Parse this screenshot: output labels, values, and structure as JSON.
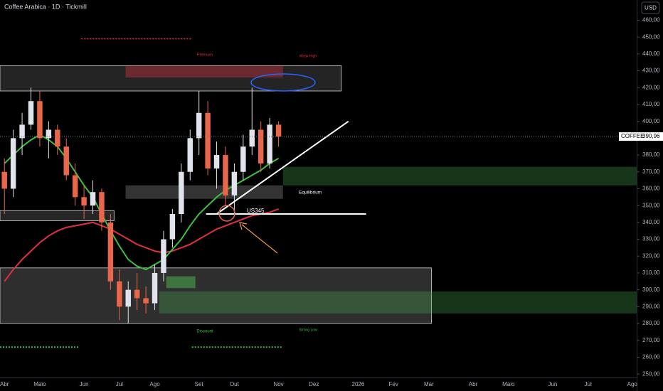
{
  "header": {
    "title": "Coffee Arabica · 1D · Tickmill",
    "currency": "USD"
  },
  "chart_data": {
    "type": "candlestick",
    "categories": [
      "Abr",
      null,
      null,
      null,
      "Maio",
      null,
      null,
      null,
      null,
      "Jun",
      null,
      null,
      null,
      "Jul",
      null,
      null,
      null,
      "Ago",
      null,
      null,
      null,
      null,
      "Set",
      null,
      null,
      null,
      "Out",
      null,
      null,
      null,
      null,
      "Nov",
      null,
      null,
      null,
      "Dez",
      null,
      null,
      null,
      null,
      "2026",
      null,
      null,
      null,
      "Fev",
      null,
      null,
      null,
      "Mar",
      null,
      null,
      null,
      null,
      "Abr",
      null,
      null,
      null,
      "Maio",
      null,
      null,
      null,
      null,
      "Jun",
      null,
      null,
      null,
      "Jul",
      null,
      null,
      null,
      null,
      "Ago"
    ],
    "open": [
      370,
      360,
      390,
      398,
      412,
      390,
      395,
      385,
      368,
      355,
      350,
      358,
      340,
      305,
      290,
      300,
      295,
      292,
      310,
      330,
      345,
      370,
      390,
      405,
      372,
      380,
      356,
      370,
      385,
      395,
      375,
      398,
      null,
      null,
      null,
      null,
      null,
      null,
      null,
      null,
      null,
      null,
      null,
      null,
      null,
      null,
      null,
      null,
      null,
      null,
      null,
      null,
      null,
      null,
      null,
      null,
      null,
      null,
      null,
      null,
      null,
      null,
      null,
      null,
      null,
      null,
      null,
      null,
      null,
      null,
      null,
      null
    ],
    "high": [
      378,
      395,
      405,
      420,
      418,
      400,
      398,
      390,
      375,
      362,
      365,
      360,
      345,
      312,
      305,
      310,
      302,
      315,
      335,
      348,
      375,
      395,
      418,
      412,
      388,
      385,
      375,
      392,
      420,
      400,
      402,
      400,
      null,
      null,
      null,
      null,
      null,
      null,
      null,
      null,
      null,
      null,
      null,
      null,
      null,
      null,
      null,
      null,
      null,
      null,
      null,
      null,
      null,
      null,
      null,
      null,
      null,
      null,
      null,
      null,
      null,
      null,
      null,
      null,
      null,
      null,
      null,
      null,
      null,
      null,
      null,
      null
    ],
    "low": [
      345,
      355,
      380,
      395,
      385,
      378,
      380,
      365,
      350,
      342,
      345,
      335,
      300,
      282,
      280,
      288,
      286,
      288,
      305,
      325,
      340,
      365,
      380,
      368,
      360,
      350,
      345,
      365,
      380,
      370,
      372,
      385,
      null,
      null,
      null,
      null,
      null,
      null,
      null,
      null,
      null,
      null,
      null,
      null,
      null,
      null,
      null,
      null,
      null,
      null,
      null,
      null,
      null,
      null,
      null,
      null,
      null,
      null,
      null,
      null,
      null,
      null,
      null,
      null,
      null,
      null,
      null,
      null,
      null,
      null,
      null,
      null
    ],
    "close": [
      360,
      390,
      398,
      412,
      390,
      395,
      385,
      368,
      355,
      350,
      358,
      340,
      305,
      290,
      300,
      295,
      292,
      310,
      330,
      345,
      370,
      390,
      405,
      372,
      380,
      356,
      370,
      385,
      395,
      375,
      398,
      390.96,
      null,
      null,
      null,
      null,
      null,
      null,
      null,
      null,
      null,
      null,
      null,
      null,
      null,
      null,
      null,
      null,
      null,
      null,
      null,
      null,
      null,
      null,
      null,
      null,
      null,
      null,
      null,
      null,
      null,
      null,
      null,
      null,
      null,
      null,
      null,
      null,
      null,
      null,
      null,
      null
    ],
    "up_color": "#e0e3eb",
    "down_color": "#e8664a",
    "ma": [
      {
        "color": "#e0303e",
        "values": [
          305,
          312,
          318,
          323,
          328,
          332,
          335,
          337,
          338,
          339,
          340,
          338,
          336,
          333,
          330,
          327,
          325,
          323,
          322,
          323,
          325,
          327,
          330,
          333,
          336,
          338,
          340,
          342,
          344,
          345,
          346,
          348,
          null,
          null,
          null,
          null,
          null,
          null,
          null,
          null,
          null,
          null,
          null,
          null,
          null,
          null,
          null,
          null,
          null,
          null,
          null,
          null,
          null,
          null,
          null,
          null,
          null,
          null,
          null,
          null,
          null,
          null,
          null,
          null,
          null,
          null,
          null,
          null,
          null,
          null,
          null,
          null
        ]
      },
      {
        "color": "#3fbf3f",
        "values": [
          375,
          380,
          385,
          389,
          392,
          389,
          385,
          378,
          370,
          362,
          355,
          345,
          335,
          326,
          318,
          314,
          312,
          315,
          318,
          324,
          330,
          338,
          345,
          350,
          355,
          359,
          362,
          365,
          368,
          371,
          375,
          378,
          null,
          null,
          null,
          null,
          null,
          null,
          null,
          null,
          null,
          null,
          null,
          null,
          null,
          null,
          null,
          null,
          null,
          null,
          null,
          null,
          null,
          null,
          null,
          null,
          null,
          null,
          null,
          null,
          null,
          null,
          null,
          null,
          null,
          null,
          null,
          null,
          null,
          null,
          null,
          null
        ]
      }
    ],
    "zones": [
      {
        "x": [
          0,
          38.6
        ],
        "y": [
          418,
          433
        ],
        "color": "rgba(255,255,255,0.14)",
        "border": true
      },
      {
        "x": [
          14.2,
          32
        ],
        "y": [
          426,
          433
        ],
        "color": "rgba(242,54,69,0.35)",
        "border": false
      },
      {
        "x": [
          14.2,
          32
        ],
        "y": [
          354,
          362
        ],
        "color": "rgba(255,255,255,0.2)",
        "border": false
      },
      {
        "x": [
          0,
          12.9
        ],
        "y": [
          341,
          347
        ],
        "color": "rgba(255,255,255,0.15)",
        "border": true
      },
      {
        "x": [
          32,
          72
        ],
        "y": [
          362,
          373
        ],
        "color": "rgba(76,175,80,0.3)",
        "border": false
      },
      {
        "x": [
          0,
          48.8
        ],
        "y": [
          280,
          313
        ],
        "color": "rgba(255,255,255,0.18)",
        "border": true
      },
      {
        "x": [
          18,
          72
        ],
        "y": [
          286,
          299
        ],
        "color": "rgba(76,175,80,0.3)",
        "border": false
      },
      {
        "x": [
          18.8,
          22.1
        ],
        "y": [
          301,
          308
        ],
        "color": "rgba(76,175,80,0.55)",
        "border": false
      }
    ],
    "lines": [
      {
        "x": [
          24.5,
          39.4
        ],
        "y": [
          345,
          400
        ],
        "color": "#ffffff",
        "width": 2,
        "dash": false
      },
      {
        "x": [
          23.3,
          41.4
        ],
        "y": [
          345,
          345
        ],
        "color": "#ffffff",
        "width": 2,
        "dash": false
      },
      {
        "x": [
          9.2,
          21.7
        ],
        "y": [
          449,
          449
        ],
        "color": "#e0303e",
        "width": 1.5,
        "dash": true
      },
      {
        "x": [
          0,
          9
        ],
        "y": [
          266,
          266
        ],
        "color": "#3fbf3f",
        "width": 2,
        "dash": true
      },
      {
        "x": [
          21.7,
          32
        ],
        "y": [
          266,
          266
        ],
        "color": "#3fbf3f",
        "width": 2,
        "dash": true
      }
    ],
    "annotations": [
      "Premium",
      "Weak High",
      "Equilibrium",
      "US345",
      "Discount",
      "Strong Low"
    ],
    "last_price": {
      "name": "COFFEE",
      "value": 390.96,
      "label": "390,96"
    },
    "ylim": [
      245,
      472
    ],
    "yticks": [
      {
        "value": 250,
        "label": "250,00"
      },
      {
        "value": 260,
        "label": "260,00"
      },
      {
        "value": 270,
        "label": "270,00"
      },
      {
        "value": 280,
        "label": "280,00"
      },
      {
        "value": 290,
        "label": "290,00"
      },
      {
        "value": 300,
        "label": "300,00"
      },
      {
        "value": 310,
        "label": "310,00"
      },
      {
        "value": 320,
        "label": "320,00"
      },
      {
        "value": 330,
        "label": "330,00"
      },
      {
        "value": 340,
        "label": "340,00"
      },
      {
        "value": 350,
        "label": "350,00"
      },
      {
        "value": 360,
        "label": "360,00"
      },
      {
        "value": 370,
        "label": "370,00"
      },
      {
        "value": 380,
        "label": "380,00"
      },
      {
        "value": 390,
        "label": "390,00"
      },
      {
        "value": 400,
        "label": "400,00"
      },
      {
        "value": 410,
        "label": "410,00"
      },
      {
        "value": 420,
        "label": "420,00"
      },
      {
        "value": 430,
        "label": "430,00"
      },
      {
        "value": 440,
        "label": "440,00"
      },
      {
        "value": 450,
        "label": "450,00"
      },
      {
        "value": 460,
        "label": "460,00"
      }
    ]
  }
}
